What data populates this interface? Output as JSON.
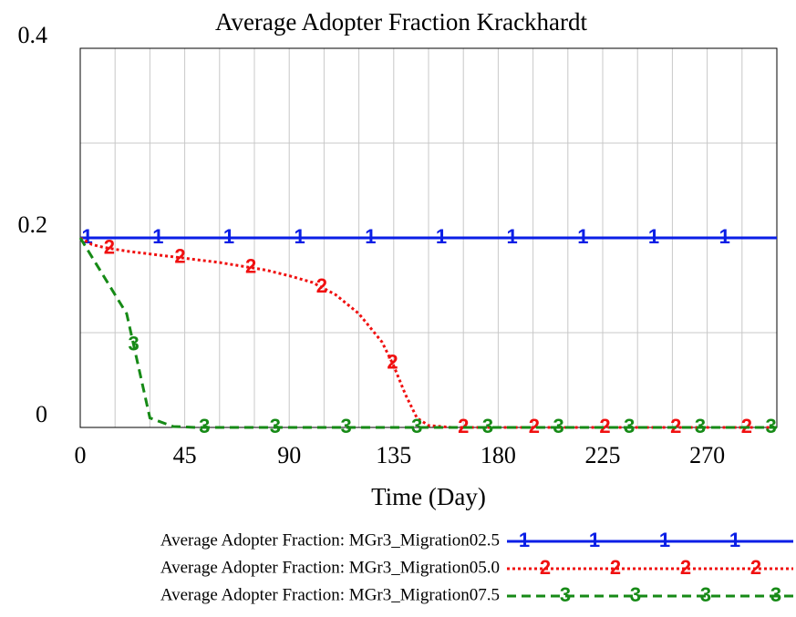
{
  "chart_data": {
    "type": "line",
    "title": "Average Adopter Fraction Krackhardt",
    "xlabel": "Time (Day)",
    "x": [
      0,
      5,
      10,
      20,
      30,
      40,
      50,
      60,
      70,
      80,
      90,
      100,
      110,
      120,
      130,
      135,
      140,
      145,
      150,
      160,
      200,
      250,
      300
    ],
    "series": [
      {
        "name": "Average Adopter Fraction: MGr3_Migration02.5",
        "marker": "1",
        "color": "#0a1ee6",
        "dash": "solid",
        "values": [
          0.2,
          0.2,
          0.2,
          0.2,
          0.2,
          0.2,
          0.2,
          0.2,
          0.2,
          0.2,
          0.2,
          0.2,
          0.2,
          0.2,
          0.2,
          0.2,
          0.2,
          0.2,
          0.2,
          0.2,
          0.2,
          0.2,
          0.2
        ]
      },
      {
        "name": "Average Adopter Fraction: MGr3_Migration05.0",
        "marker": "2",
        "color": "#f01010",
        "dash": "dotted",
        "values": [
          0.2,
          0.193,
          0.19,
          0.186,
          0.183,
          0.18,
          0.177,
          0.174,
          0.17,
          0.166,
          0.16,
          0.153,
          0.14,
          0.12,
          0.09,
          0.065,
          0.035,
          0.01,
          0.002,
          0,
          0,
          0,
          0
        ]
      },
      {
        "name": "Average Adopter Fraction: MGr3_Migration07.5",
        "marker": "3",
        "color": "#168a16",
        "dash": "dashed",
        "values": [
          0.2,
          0.18,
          0.16,
          0.12,
          0.01,
          0.001,
          0,
          0,
          0,
          0,
          0,
          0,
          0,
          0,
          0,
          0,
          0,
          0,
          0,
          0,
          0,
          0,
          0
        ]
      }
    ],
    "xlim": [
      0,
      300
    ],
    "ylim": [
      0,
      0.4
    ],
    "xticks": [
      0,
      45,
      90,
      135,
      180,
      225,
      270
    ],
    "yticks": [
      0,
      0.2,
      0.4
    ],
    "grid": true,
    "x_minor_divisions": 3,
    "y_minor_divisions": 2
  }
}
